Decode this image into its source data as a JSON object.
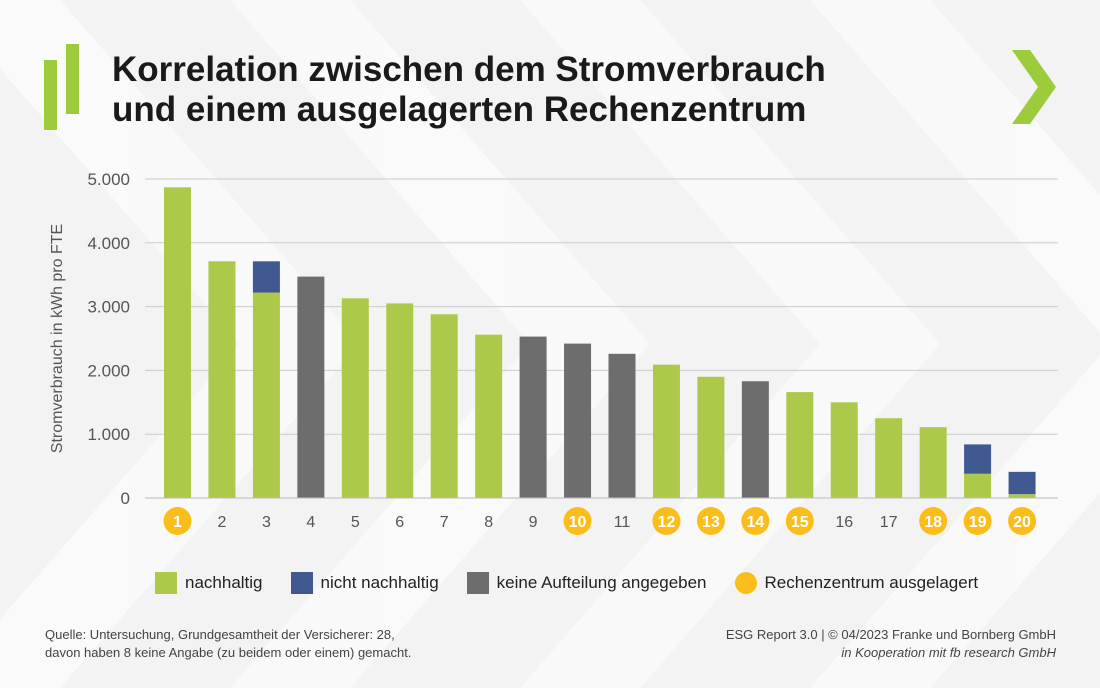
{
  "title": {
    "line1": "Korrelation zwischen dem Stromverbrauch",
    "line2": "und einem ausgelagerten Rechenzentrum"
  },
  "colors": {
    "nachhaltig": "#acc94a",
    "nicht_nachhaltig": "#405a91",
    "keine_aufteilung": "#6d6d6d",
    "ausgelagert": "#fbbd1a",
    "accent": "#9ccc3c"
  },
  "legend": [
    {
      "key": "nachhaltig",
      "label": "nachhaltig",
      "shape": "square"
    },
    {
      "key": "nicht_nachhaltig",
      "label": "nicht nachhaltig",
      "shape": "square"
    },
    {
      "key": "keine_aufteilung",
      "label": "keine Aufteilung angegeben",
      "shape": "square"
    },
    {
      "key": "ausgelagert",
      "label": "Rechenzentrum ausgelagert",
      "shape": "circle"
    }
  ],
  "chart_data": {
    "type": "bar",
    "stacked": true,
    "ylabel": "Stromverbrauch in kWh pro FTE",
    "xlabel": "",
    "ylim": [
      0,
      5000
    ],
    "yticks": [
      0,
      1000,
      2000,
      3000,
      4000,
      5000
    ],
    "ytick_labels": [
      "0",
      "1.000",
      "2.000",
      "3.000",
      "4.000",
      "5.000"
    ],
    "grid": true,
    "categories": [
      "1",
      "2",
      "3",
      "4",
      "5",
      "6",
      "7",
      "8",
      "9",
      "10",
      "11",
      "12",
      "13",
      "14",
      "15",
      "16",
      "17",
      "18",
      "19",
      "20"
    ],
    "series": [
      {
        "name": "nachhaltig",
        "values": [
          4870,
          3710,
          3220,
          0,
          3130,
          3050,
          2880,
          2560,
          0,
          0,
          0,
          2090,
          1900,
          0,
          1660,
          1500,
          1250,
          1110,
          380,
          60
        ]
      },
      {
        "name": "nicht nachhaltig",
        "values": [
          0,
          0,
          490,
          0,
          0,
          0,
          0,
          0,
          0,
          0,
          0,
          0,
          0,
          0,
          0,
          0,
          0,
          0,
          460,
          350
        ]
      },
      {
        "name": "keine Aufteilung angegeben",
        "values": [
          0,
          0,
          0,
          3470,
          0,
          0,
          0,
          0,
          2530,
          2420,
          2260,
          0,
          0,
          1830,
          0,
          0,
          0,
          0,
          0,
          0
        ]
      }
    ],
    "rechenzentrum_ausgelagert": [
      true,
      false,
      false,
      false,
      false,
      false,
      false,
      false,
      false,
      true,
      false,
      true,
      true,
      true,
      true,
      false,
      false,
      true,
      true,
      true
    ]
  },
  "footer": {
    "source_line1": "Quelle: Untersuchung, Grundgesamtheit der Versicherer: 28,",
    "source_line2": "davon haben 8 keine Angabe (zu beidem oder einem) gemacht.",
    "credit_line1": "ESG Report 3.0 | © 04/2023 Franke und Bornberg GmbH",
    "credit_line2": "in Kooperation mit fb research GmbH"
  }
}
